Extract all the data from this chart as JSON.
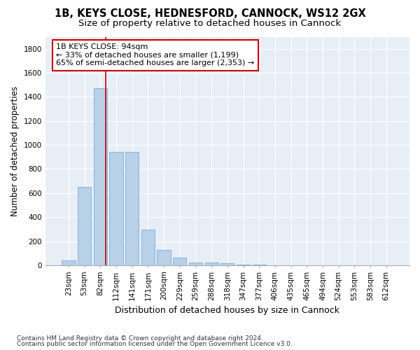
{
  "title_line1": "1B, KEYS CLOSE, HEDNESFORD, CANNOCK, WS12 2GX",
  "title_line2": "Size of property relative to detached houses in Cannock",
  "xlabel": "Distribution of detached houses by size in Cannock",
  "ylabel": "Number of detached properties",
  "categories": [
    "23sqm",
    "53sqm",
    "82sqm",
    "112sqm",
    "141sqm",
    "171sqm",
    "200sqm",
    "229sqm",
    "259sqm",
    "288sqm",
    "318sqm",
    "347sqm",
    "377sqm",
    "406sqm",
    "435sqm",
    "465sqm",
    "494sqm",
    "524sqm",
    "553sqm",
    "583sqm",
    "612sqm"
  ],
  "values": [
    40,
    650,
    1470,
    940,
    940,
    295,
    130,
    65,
    25,
    20,
    15,
    5,
    5,
    0,
    0,
    0,
    0,
    0,
    0,
    0,
    0
  ],
  "bar_color": "#b8d0e8",
  "bar_edge_color": "#7aafd4",
  "vline_color": "#cc0000",
  "vline_x_index": 2.35,
  "annotation_title": "1B KEYS CLOSE: 94sqm",
  "annotation_line1": "← 33% of detached houses are smaller (1,199)",
  "annotation_line2": "65% of semi-detached houses are larger (2,353) →",
  "annotation_box_edgecolor": "#cc0000",
  "ylim": [
    0,
    1900
  ],
  "yticks": [
    0,
    200,
    400,
    600,
    800,
    1000,
    1200,
    1400,
    1600,
    1800
  ],
  "footnote_line1": "Contains HM Land Registry data © Crown copyright and database right 2024.",
  "footnote_line2": "Contains public sector information licensed under the Open Government Licence v3.0.",
  "figure_facecolor": "#ffffff",
  "axes_facecolor": "#e8eef5",
  "grid_color": "#ffffff",
  "title_fontsize": 10.5,
  "subtitle_fontsize": 9.5,
  "ylabel_fontsize": 8.5,
  "xlabel_fontsize": 9,
  "tick_fontsize": 7.5,
  "annotation_fontsize": 8,
  "footnote_fontsize": 6.5
}
